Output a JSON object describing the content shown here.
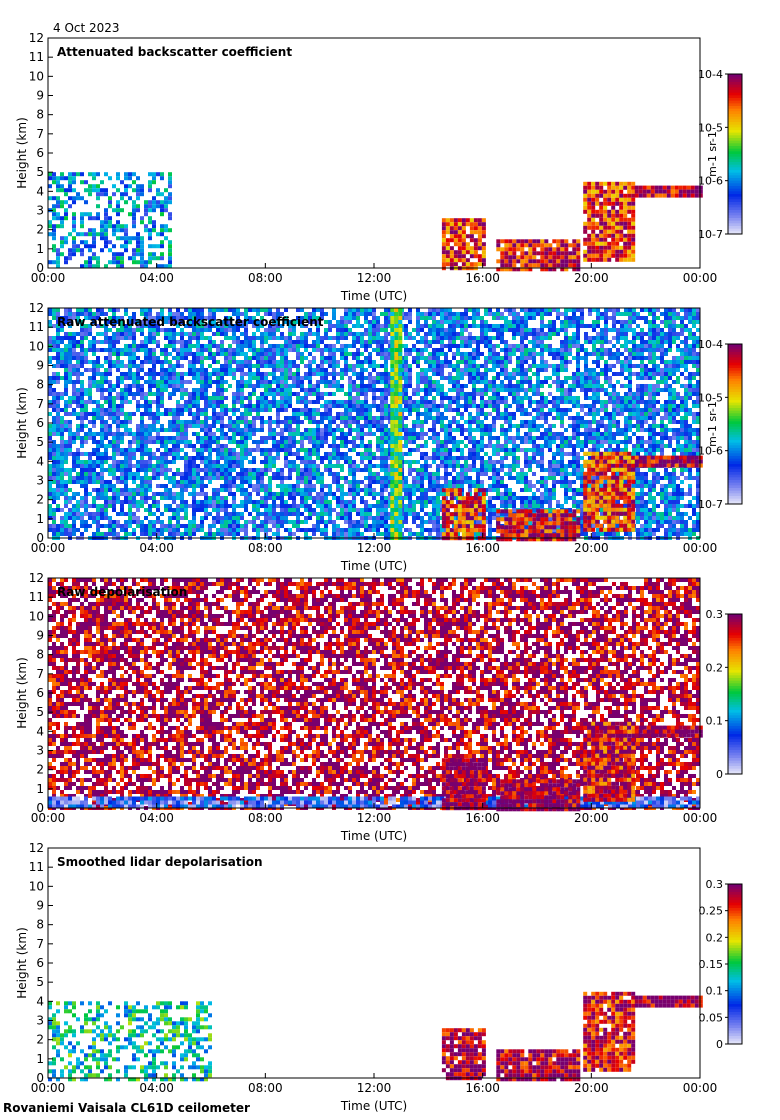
{
  "date": "4 Oct 2023",
  "footer": "Rovaniemi Vaisala CL61D ceilometer",
  "chart_data": [
    {
      "type": "heatmap",
      "title": "Attenuated backscatter coefficient",
      "xlabel": "Time (UTC)",
      "ylabel": "Height (km)",
      "xticks": [
        "00:00",
        "04:00",
        "08:00",
        "12:00",
        "16:00",
        "20:00",
        "00:00"
      ],
      "yticks": [
        0,
        1,
        2,
        3,
        4,
        5,
        6,
        7,
        8,
        9,
        10,
        11,
        12
      ],
      "ylim": [
        0,
        12
      ],
      "colorbar": {
        "scale": "log",
        "ticks": [
          "10-7",
          "10-6",
          "10-5",
          "10-4"
        ],
        "unit": "m-1 sr-1"
      },
      "features": [
        {
          "t0": 0,
          "t1": 4.5,
          "h0": 0,
          "h1": 5,
          "level": 0.35,
          "fill": 0.55
        },
        {
          "t0": 14.5,
          "t1": 16,
          "h0": 0,
          "h1": 2.6,
          "level": 0.85,
          "fill": 0.9
        },
        {
          "t0": 16.5,
          "t1": 19.5,
          "h0": 0,
          "h1": 1.5,
          "level": 0.9,
          "fill": 0.9
        },
        {
          "t0": 19.7,
          "t1": 21.5,
          "h0": 0.5,
          "h1": 4.5,
          "level": 0.85,
          "fill": 0.9
        },
        {
          "t0": 21.6,
          "t1": 24,
          "h0": 3.8,
          "h1": 4.3,
          "level": 0.95,
          "fill": 1
        }
      ]
    },
    {
      "type": "heatmap",
      "title": "Raw attenuated backscatter coefficient",
      "xlabel": "Time (UTC)",
      "ylabel": "Height (km)",
      "xticks": [
        "00:00",
        "04:00",
        "08:00",
        "12:00",
        "16:00",
        "20:00",
        "00:00"
      ],
      "yticks": [
        0,
        1,
        2,
        3,
        4,
        5,
        6,
        7,
        8,
        9,
        10,
        11,
        12
      ],
      "ylim": [
        0,
        12
      ],
      "colorbar": {
        "scale": "log",
        "ticks": [
          "10-7",
          "10-6",
          "10-5",
          "10-4"
        ],
        "unit": "m-1 sr-1"
      },
      "features": [
        {
          "t0": 0,
          "t1": 24,
          "h0": 0,
          "h1": 12,
          "level": 0.3,
          "fill": 0.75
        },
        {
          "t0": 12.6,
          "t1": 12.9,
          "h0": 0,
          "h1": 12,
          "level": 0.55,
          "fill": 1
        },
        {
          "t0": 14.5,
          "t1": 16,
          "h0": 0,
          "h1": 2.6,
          "level": 0.85,
          "fill": 0.9
        },
        {
          "t0": 16.5,
          "t1": 19.5,
          "h0": 0,
          "h1": 1.5,
          "level": 0.9,
          "fill": 0.9
        },
        {
          "t0": 19.7,
          "t1": 21.5,
          "h0": 0.5,
          "h1": 4.5,
          "level": 0.85,
          "fill": 0.9
        },
        {
          "t0": 21.6,
          "t1": 24,
          "h0": 3.8,
          "h1": 4.3,
          "level": 0.95,
          "fill": 1
        }
      ]
    },
    {
      "type": "heatmap",
      "title": "Raw depolarisation",
      "xlabel": "Time (UTC)",
      "ylabel": "Height (km)",
      "xticks": [
        "00:00",
        "04:00",
        "08:00",
        "12:00",
        "16:00",
        "20:00",
        "00:00"
      ],
      "yticks": [
        0,
        1,
        2,
        3,
        4,
        5,
        6,
        7,
        8,
        9,
        10,
        11,
        12
      ],
      "ylim": [
        0,
        12
      ],
      "colorbar": {
        "scale": "linear",
        "ticks": [
          "0",
          "0.1",
          "0.2",
          "0.3"
        ],
        "unit": ""
      },
      "features": [
        {
          "t0": 0,
          "t1": 24,
          "h0": 0,
          "h1": 12,
          "level": 0.95,
          "fill": 0.7
        },
        {
          "t0": 0,
          "t1": 24,
          "h0": 0,
          "h1": 0.6,
          "level": 0.2,
          "fill": 0.9
        },
        {
          "t0": 14.5,
          "t1": 16,
          "h0": 0,
          "h1": 2.6,
          "level": 0.98,
          "fill": 0.95
        },
        {
          "t0": 16.5,
          "t1": 19.5,
          "h0": 0,
          "h1": 1.5,
          "level": 0.98,
          "fill": 0.95
        },
        {
          "t0": 19.7,
          "t1": 21.5,
          "h0": 0.5,
          "h1": 4.5,
          "level": 0.9,
          "fill": 0.95
        },
        {
          "t0": 21.6,
          "t1": 24,
          "h0": 3.8,
          "h1": 4.3,
          "level": 0.98,
          "fill": 1
        }
      ]
    },
    {
      "type": "heatmap",
      "title": "Smoothed lidar depolarisation",
      "xlabel": "Time (UTC)",
      "ylabel": "Height (km)",
      "xticks": [
        "00:00",
        "04:00",
        "08:00",
        "12:00",
        "16:00",
        "20:00",
        "00:00"
      ],
      "yticks": [
        0,
        1,
        2,
        3,
        4,
        5,
        6,
        7,
        8,
        9,
        10,
        11,
        12
      ],
      "ylim": [
        0,
        12
      ],
      "colorbar": {
        "scale": "linear",
        "ticks": [
          "0",
          "0.05",
          "0.1",
          "0.15",
          "0.2",
          "0.25",
          "0.3"
        ],
        "unit": ""
      },
      "features": [
        {
          "t0": 0,
          "t1": 6,
          "h0": 0,
          "h1": 4,
          "level": 0.45,
          "fill": 0.45
        },
        {
          "t0": 14.5,
          "t1": 16,
          "h0": 0,
          "h1": 2.6,
          "level": 0.95,
          "fill": 0.9
        },
        {
          "t0": 16.5,
          "t1": 19.5,
          "h0": 0,
          "h1": 1.5,
          "level": 0.95,
          "fill": 0.9
        },
        {
          "t0": 19.7,
          "t1": 21.5,
          "h0": 0.5,
          "h1": 4.5,
          "level": 0.9,
          "fill": 0.9
        },
        {
          "t0": 21.6,
          "t1": 24,
          "h0": 3.8,
          "h1": 4.3,
          "level": 0.98,
          "fill": 1
        }
      ]
    }
  ]
}
